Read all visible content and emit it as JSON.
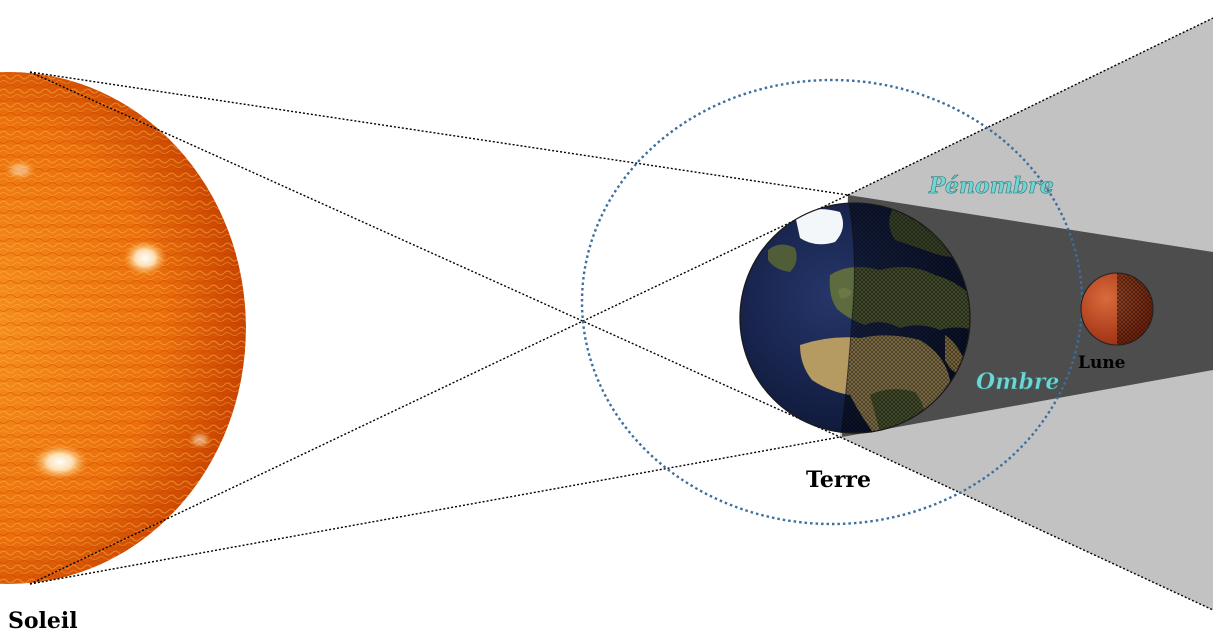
{
  "labels": {
    "sun": "Soleil",
    "earth": "Terre",
    "moon": "Lune",
    "penumbra": "Pénombre",
    "umbra": "Ombre"
  },
  "colors": {
    "penumbra_fill": "#c2c2c2",
    "umbra_fill": "#4d4d4d",
    "region_text": "#6fd6d6",
    "orbit": "#3d6e9e",
    "sun_core": "#f07a10",
    "sun_edge": "#d04a00",
    "moon": "#b8461e"
  }
}
